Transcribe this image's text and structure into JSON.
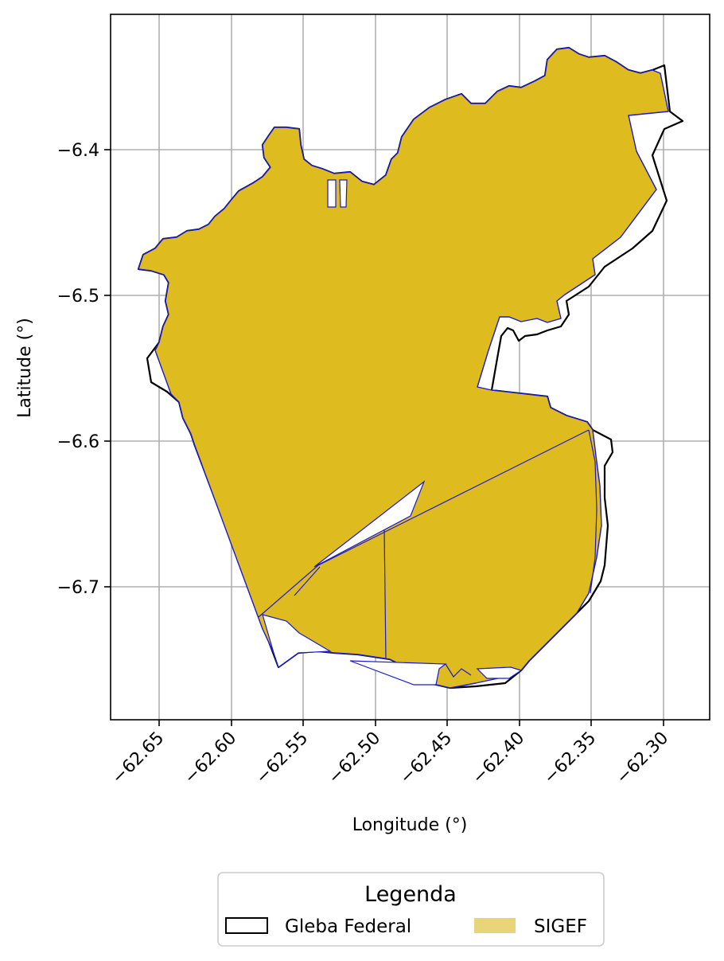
{
  "axes": {
    "xlabel": "Longitude (°)",
    "ylabel": "Latitude (°)",
    "x_ticks": [
      "−62.65",
      "−62.60",
      "−62.55",
      "−62.50",
      "−62.45",
      "−62.40",
      "−62.35",
      "−62.30"
    ],
    "y_ticks": [
      "−6.4",
      "−6.5",
      "−6.6",
      "−6.7"
    ],
    "xlim": [
      -62.683,
      -62.267
    ],
    "ylim": [
      -6.793,
      -6.307
    ],
    "grid": true
  },
  "legend": {
    "title": "Legenda",
    "placement": "bottom-center",
    "items": [
      {
        "label": "Gleba Federal",
        "style": "outline",
        "color": "#000000"
      },
      {
        "label": "SIGEF",
        "style": "fill",
        "color": "#E8D57A"
      }
    ]
  },
  "colors": {
    "sigef_fill": "#DEBB1F",
    "sigef_edge": "#1A1AD0",
    "gleba_edge": "#000000",
    "grid": "#B0B0B0"
  }
}
